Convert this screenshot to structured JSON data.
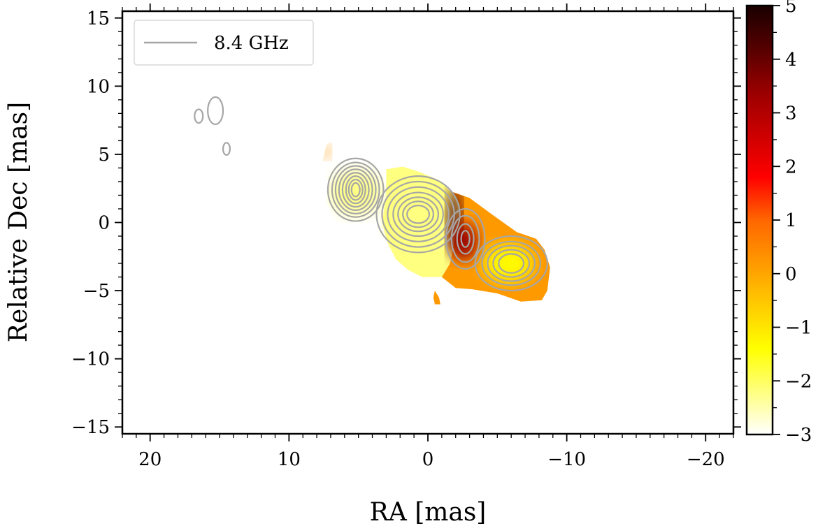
{
  "chart_data": {
    "type": "heatmap",
    "title": "",
    "xlabel": "RA [mas]",
    "ylabel": "Relative Dec [mas]",
    "xlim": [
      22,
      -22
    ],
    "ylim": [
      -15.5,
      15.5
    ],
    "xticks": [
      20,
      10,
      0,
      -10,
      -20
    ],
    "xtick_labels": [
      "20",
      "10",
      "0",
      "−10",
      "−20"
    ],
    "yticks": [
      15,
      10,
      5,
      0,
      -5,
      -10,
      -15
    ],
    "ytick_labels": [
      "15",
      "10",
      "5",
      "0",
      "−5",
      "−10",
      "−15"
    ],
    "legend": {
      "location": "upper-left",
      "entries": [
        {
          "label": "8.4 GHz",
          "color": "#a6a6a6"
        }
      ]
    },
    "colorbar": {
      "range": [
        -3,
        5
      ],
      "ticks": [
        5,
        4,
        3,
        2,
        1,
        0,
        -1,
        -2,
        -3
      ],
      "tick_labels": [
        "5",
        "4",
        "3",
        "2",
        "1",
        "0",
        "−1",
        "−2",
        "−3"
      ],
      "colormap": [
        "#ffffff",
        "#ffff80",
        "#ffff00",
        "#ffcc00",
        "#ff9900",
        "#ff6600",
        "#ff0000",
        "#cc0000",
        "#990000",
        "#550000",
        "#1a0000"
      ]
    },
    "heatmap_regions": [
      {
        "name": "east-lobe",
        "polygon": [
          [
            7.3,
            5.7
          ],
          [
            7.6,
            4.5
          ],
          [
            7.2,
            3.0
          ],
          [
            7.3,
            1.5
          ],
          [
            6.6,
            0
          ],
          [
            5.8,
            -1.0
          ],
          [
            4.5,
            -1.3
          ],
          [
            3.3,
            -1.0
          ],
          [
            2.6,
            -0.5
          ],
          [
            2.9,
            1.5
          ],
          [
            3.2,
            3.5
          ],
          [
            4.2,
            4.7
          ],
          [
            5.8,
            5.0
          ],
          [
            7.0,
            5.9
          ]
        ]
      },
      {
        "name": "core-lobe",
        "polygon": [
          [
            3.0,
            3.9
          ],
          [
            1.8,
            4.1
          ],
          [
            0.6,
            3.7
          ],
          [
            -0.8,
            3.1
          ],
          [
            -1.6,
            2.3
          ],
          [
            -2.3,
            1.3
          ],
          [
            -2.0,
            -1.0
          ],
          [
            -1.6,
            -3.0
          ],
          [
            -1.0,
            -4.0
          ],
          [
            0.4,
            -4.0
          ],
          [
            1.4,
            -3.5
          ],
          [
            2.3,
            -2.7
          ],
          [
            2.9,
            -1.5
          ],
          [
            3.3,
            0
          ],
          [
            3.0,
            2.0
          ]
        ]
      },
      {
        "name": "west-lobe",
        "polygon": [
          [
            -1.6,
            2.3
          ],
          [
            -3.0,
            1.8
          ],
          [
            -4.6,
            0.6
          ],
          [
            -6.4,
            -0.7
          ],
          [
            -7.8,
            -1.2
          ],
          [
            -8.4,
            -2.0
          ],
          [
            -8.8,
            -3.3
          ],
          [
            -8.6,
            -5.0
          ],
          [
            -8.2,
            -5.7
          ],
          [
            -6.7,
            -5.8
          ],
          [
            -5.0,
            -5.2
          ],
          [
            -3.2,
            -4.9
          ],
          [
            -2.0,
            -4.8
          ],
          [
            -1.0,
            -4.0
          ],
          [
            -1.6,
            -3.0
          ],
          [
            -2.0,
            -1.0
          ],
          [
            -2.3,
            1.3
          ]
        ]
      },
      {
        "name": "blob",
        "polygon": [
          [
            -0.5,
            -5.0
          ],
          [
            -0.8,
            -5.5
          ],
          [
            -0.9,
            -6.0
          ],
          [
            -0.5,
            -6.0
          ],
          [
            -0.4,
            -5.5
          ]
        ]
      }
    ],
    "heatmap_spots": [
      {
        "x": 5.2,
        "y": 2.2,
        "rx": 1.8,
        "ry": 1.6,
        "value": -2.5
      },
      {
        "x": 1.0,
        "y": 0.3,
        "rx": 1.9,
        "ry": 2.6,
        "value": -2.4
      },
      {
        "x": -1.9,
        "y": 0.3,
        "rx": 0.5,
        "ry": 2.4,
        "value": 4.5
      },
      {
        "x": -2.6,
        "y": -1.4,
        "rx": 1.0,
        "ry": 1.4,
        "value": 3.2
      },
      {
        "x": -5.8,
        "y": -3.0,
        "rx": 1.8,
        "ry": 1.4,
        "value": -1.8
      },
      {
        "x": 7.3,
        "y": 5.2,
        "rx": 0.3,
        "ry": 0.5,
        "value": 0.5
      }
    ],
    "contours": [
      {
        "x": 5.2,
        "y": 2.4,
        "rx": [
          2.0,
          1.7,
          1.45,
          1.2,
          0.95,
          0.7,
          0.5,
          0.3
        ],
        "ry": [
          2.3,
          2.0,
          1.75,
          1.5,
          1.25,
          1.0,
          0.75,
          0.5
        ]
      },
      {
        "x": 0.7,
        "y": 0.6,
        "rx": [
          3.0,
          2.6,
          2.2,
          1.8,
          1.45,
          1.1,
          0.8
        ],
        "ry": [
          2.8,
          2.4,
          2.0,
          1.6,
          1.25,
          0.95,
          0.65
        ]
      },
      {
        "x": -2.7,
        "y": -1.2,
        "rx": [
          1.4,
          1.0,
          0.6,
          0.3
        ],
        "ry": [
          2.2,
          1.7,
          1.1,
          0.6
        ]
      },
      {
        "x": -6.0,
        "y": -3.0,
        "rx": [
          2.6,
          2.1,
          1.7,
          1.3,
          0.9
        ],
        "ry": [
          2.0,
          1.6,
          1.3,
          1.0,
          0.7
        ]
      },
      {
        "x": 15.3,
        "y": 8.2,
        "rx": [
          0.55
        ],
        "ry": [
          1.0
        ]
      },
      {
        "x": 16.5,
        "y": 7.8,
        "rx": [
          0.3
        ],
        "ry": [
          0.5
        ]
      },
      {
        "x": 14.5,
        "y": 5.4,
        "rx": [
          0.25
        ],
        "ry": [
          0.45
        ]
      }
    ],
    "contour_color": "#a6a6a6"
  }
}
